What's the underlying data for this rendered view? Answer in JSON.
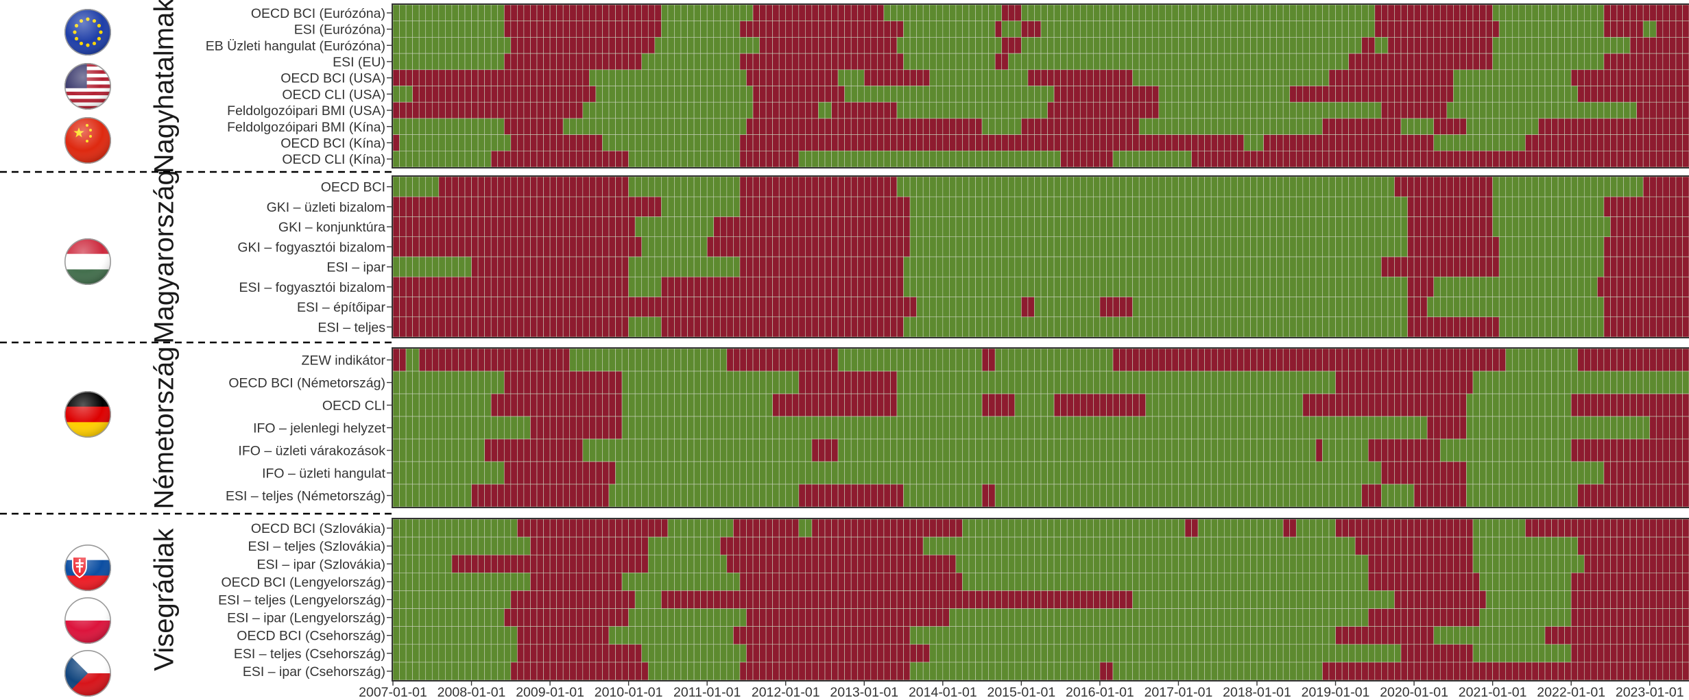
{
  "colors": {
    "red": "#8e1b2f",
    "green": "#5d8a2f",
    "cell_border": "#c9d2bc",
    "divider": "#000000"
  },
  "chart_data": {
    "type": "heatmap",
    "x_start": "2007-01",
    "x_end": "2023-06",
    "step": "month",
    "x_ticks": [
      "2007-01-01",
      "2008-01-01",
      "2009-01-01",
      "2010-01-01",
      "2011-01-01",
      "2012-01-01",
      "2013-01-01",
      "2014-01-01",
      "2015-01-01",
      "2016-01-01",
      "2017-01-01",
      "2018-01-01",
      "2019-01-01",
      "2020-01-01",
      "2021-01-01",
      "2022-01-01",
      "2023-01-01"
    ],
    "encoding": {
      "red": "negative signal",
      "green": "positive signal"
    },
    "groups": [
      {
        "title": "Nagyhatalmak",
        "flags": [
          "eu-flag-icon",
          "usa-flag-icon",
          "china-flag-icon"
        ],
        "rows": [
          {
            "label": "OECD BCI (Eurózóna)",
            "red_periods": [
              [
                "2008-06",
                "2010-05"
              ],
              [
                "2011-08",
                "2013-03"
              ],
              [
                "2014-10",
                "2014-12"
              ],
              [
                "2019-07",
                "2020-12"
              ],
              [
                "2022-06",
                "2023-06"
              ]
            ]
          },
          {
            "label": "ESI (Eurózóna)",
            "red_periods": [
              [
                "2008-06",
                "2010-05"
              ],
              [
                "2011-06",
                "2013-06"
              ],
              [
                "2014-09",
                "2014-09"
              ],
              [
                "2015-01",
                "2015-03"
              ],
              [
                "2019-07",
                "2021-01"
              ],
              [
                "2022-06",
                "2022-11"
              ],
              [
                "2023-02",
                "2023-06"
              ]
            ]
          },
          {
            "label": "EB Üzleti hangulat (Eurózóna)",
            "red_periods": [
              [
                "2008-07",
                "2010-04"
              ],
              [
                "2011-09",
                "2013-05"
              ],
              [
                "2014-10",
                "2014-12"
              ],
              [
                "2019-05",
                "2019-06"
              ],
              [
                "2019-09",
                "2020-12"
              ],
              [
                "2022-10",
                "2023-06"
              ]
            ]
          },
          {
            "label": "ESI (EU)",
            "red_periods": [
              [
                "2008-06",
                "2010-02"
              ],
              [
                "2011-06",
                "2013-06"
              ],
              [
                "2014-09",
                "2014-10"
              ],
              [
                "2019-03",
                "2020-12"
              ],
              [
                "2022-06",
                "2023-06"
              ]
            ]
          },
          {
            "label": "OECD BCI (USA)",
            "red_periods": [
              [
                "2007-01",
                "2009-06"
              ],
              [
                "2011-07",
                "2012-08"
              ],
              [
                "2013-01",
                "2013-10"
              ],
              [
                "2015-02",
                "2016-05"
              ],
              [
                "2018-12",
                "2020-06"
              ],
              [
                "2022-01",
                "2023-06"
              ]
            ]
          },
          {
            "label": "OECD CLI (USA)",
            "red_periods": [
              [
                "2007-04",
                "2009-07"
              ],
              [
                "2011-08",
                "2012-09"
              ],
              [
                "2015-06",
                "2016-09"
              ],
              [
                "2018-06",
                "2020-06"
              ],
              [
                "2022-02",
                "2023-06"
              ]
            ]
          },
          {
            "label": "Feldolgozóipari BMI (USA)",
            "red_periods": [
              [
                "2007-01",
                "2009-05"
              ],
              [
                "2011-08",
                "2012-05"
              ],
              [
                "2012-08",
                "2013-05"
              ],
              [
                "2015-05",
                "2016-09"
              ],
              [
                "2019-08",
                "2020-05"
              ],
              [
                "2022-11",
                "2023-06"
              ]
            ]
          },
          {
            "label": "Feldolgozóipari BMI (Kína)",
            "red_periods": [
              [
                "2008-06",
                "2009-02"
              ],
              [
                "2011-07",
                "2014-06"
              ],
              [
                "2015-01",
                "2016-06"
              ],
              [
                "2018-11",
                "2019-10"
              ],
              [
                "2020-04",
                "2020-08"
              ],
              [
                "2021-08",
                "2023-06"
              ]
            ]
          },
          {
            "label": "OECD BCI (Kína)",
            "red_periods": [
              [
                "2007-01",
                "2007-01"
              ],
              [
                "2008-07",
                "2009-08"
              ],
              [
                "2011-06",
                "2017-10"
              ],
              [
                "2018-02",
                "2020-03"
              ],
              [
                "2021-06",
                "2023-06"
              ]
            ]
          },
          {
            "label": "OECD CLI (Kína)",
            "red_periods": [
              [
                "2008-04",
                "2009-12"
              ],
              [
                "2011-06",
                "2012-02"
              ],
              [
                "2015-07",
                "2016-02"
              ],
              [
                "2017-03",
                "2023-06"
              ]
            ]
          }
        ]
      },
      {
        "title": "Magyarország",
        "flags": [
          "hungary-flag-icon"
        ],
        "rows": [
          {
            "label": "OECD BCI",
            "red_periods": [
              [
                "2007-08",
                "2009-12"
              ],
              [
                "2011-06",
                "2013-05"
              ],
              [
                "2019-10",
                "2020-12"
              ],
              [
                "2022-12",
                "2023-06"
              ]
            ]
          },
          {
            "label": "GKI – üzleti bizalom",
            "red_periods": [
              [
                "2007-01",
                "2010-05"
              ],
              [
                "2011-06",
                "2013-07"
              ],
              [
                "2019-12",
                "2020-12"
              ],
              [
                "2022-06",
                "2023-06"
              ]
            ]
          },
          {
            "label": "GKI – konjunktúra",
            "red_periods": [
              [
                "2007-01",
                "2010-01"
              ],
              [
                "2011-02",
                "2013-07"
              ],
              [
                "2019-12",
                "2020-12"
              ],
              [
                "2022-07",
                "2023-06"
              ]
            ]
          },
          {
            "label": "GKI – fogyasztói bizalom",
            "red_periods": [
              [
                "2007-01",
                "2010-02"
              ],
              [
                "2011-01",
                "2013-07"
              ],
              [
                "2019-12",
                "2021-01"
              ],
              [
                "2022-06",
                "2023-06"
              ]
            ]
          },
          {
            "label": "ESI – ipar",
            "red_periods": [
              [
                "2008-01",
                "2009-12"
              ],
              [
                "2011-06",
                "2013-06"
              ],
              [
                "2019-08",
                "2021-01"
              ],
              [
                "2022-06",
                "2023-06"
              ]
            ]
          },
          {
            "label": "ESI – fogyasztói bizalom",
            "red_periods": [
              [
                "2007-01",
                "2009-12"
              ],
              [
                "2010-06",
                "2013-06"
              ],
              [
                "2019-12",
                "2020-03"
              ],
              [
                "2022-05",
                "2023-06"
              ]
            ]
          },
          {
            "label": "ESI – építőipar",
            "red_periods": [
              [
                "2007-01",
                "2013-08"
              ],
              [
                "2015-01",
                "2015-02"
              ],
              [
                "2016-01",
                "2016-05"
              ],
              [
                "2019-12",
                "2020-02"
              ],
              [
                "2022-06",
                "2023-06"
              ]
            ]
          },
          {
            "label": "ESI – teljes",
            "red_periods": [
              [
                "2007-01",
                "2009-12"
              ],
              [
                "2010-06",
                "2013-06"
              ],
              [
                "2019-12",
                "2021-01"
              ],
              [
                "2022-06",
                "2023-06"
              ]
            ]
          }
        ]
      },
      {
        "title": "Németország",
        "flags": [
          "germany-flag-icon"
        ],
        "rows": [
          {
            "label": "ZEW indikátor",
            "red_periods": [
              [
                "2007-01",
                "2007-02"
              ],
              [
                "2007-05",
                "2009-03"
              ],
              [
                "2011-04",
                "2012-08"
              ],
              [
                "2014-07",
                "2014-08"
              ],
              [
                "2016-03",
                "2021-02"
              ],
              [
                "2022-02",
                "2023-06"
              ]
            ]
          },
          {
            "label": "OECD BCI (Németország)",
            "red_periods": [
              [
                "2008-06",
                "2009-11"
              ],
              [
                "2012-03",
                "2013-05"
              ],
              [
                "2019-01",
                "2020-09"
              ]
            ]
          },
          {
            "label": "OECD CLI",
            "red_periods": [
              [
                "2008-04",
                "2009-11"
              ],
              [
                "2011-11",
                "2013-05"
              ],
              [
                "2014-07",
                "2014-11"
              ],
              [
                "2015-06",
                "2016-07"
              ],
              [
                "2018-08",
                "2020-08"
              ],
              [
                "2022-01",
                "2023-06"
              ]
            ]
          },
          {
            "label": "IFO – jelenlegi helyzet",
            "red_periods": [
              [
                "2008-10",
                "2009-11"
              ],
              [
                "2020-03",
                "2020-08"
              ],
              [
                "2023-01",
                "2023-06"
              ]
            ]
          },
          {
            "label": "IFO – üzleti várakozások",
            "red_periods": [
              [
                "2008-03",
                "2009-05"
              ],
              [
                "2012-05",
                "2012-08"
              ],
              [
                "2018-10",
                "2018-10"
              ],
              [
                "2019-06",
                "2020-04"
              ],
              [
                "2022-01",
                "2023-06"
              ]
            ]
          },
          {
            "label": "IFO – üzleti hangulat",
            "red_periods": [
              [
                "2008-06",
                "2009-10"
              ],
              [
                "2019-08",
                "2020-08"
              ],
              [
                "2022-06",
                "2023-06"
              ]
            ]
          },
          {
            "label": "ESI – teljes (Németország)",
            "red_periods": [
              [
                "2008-01",
                "2009-09"
              ],
              [
                "2012-03",
                "2013-06"
              ],
              [
                "2014-07",
                "2014-08"
              ],
              [
                "2019-05",
                "2019-07"
              ],
              [
                "2020-01",
                "2020-08"
              ],
              [
                "2022-02",
                "2023-06"
              ]
            ]
          }
        ]
      },
      {
        "title": "Visegrádiak",
        "flags": [
          "slovakia-flag-icon",
          "poland-flag-icon",
          "czechia-flag-icon"
        ],
        "rows": [
          {
            "label": "OECD BCI (Szlovákia)",
            "red_periods": [
              [
                "2008-08",
                "2010-06"
              ],
              [
                "2011-05",
                "2012-02"
              ],
              [
                "2012-05",
                "2014-03"
              ],
              [
                "2017-02",
                "2017-03"
              ],
              [
                "2018-05",
                "2018-06"
              ],
              [
                "2019-01",
                "2020-09"
              ],
              [
                "2021-06",
                "2023-06"
              ]
            ]
          },
          {
            "label": "ESI – teljes (Szlovákia)",
            "red_periods": [
              [
                "2008-10",
                "2010-03"
              ],
              [
                "2011-03",
                "2013-09"
              ],
              [
                "2019-04",
                "2020-09"
              ],
              [
                "2022-02",
                "2023-06"
              ]
            ]
          },
          {
            "label": "ESI – ipar (Szlovákia)",
            "red_periods": [
              [
                "2007-10",
                "2010-03"
              ],
              [
                "2011-04",
                "2014-02"
              ],
              [
                "2019-06",
                "2020-09"
              ],
              [
                "2022-03",
                "2023-06"
              ]
            ]
          },
          {
            "label": "OECD BCI (Lengyelország)",
            "red_periods": [
              [
                "2008-10",
                "2009-11"
              ],
              [
                "2011-06",
                "2014-03"
              ],
              [
                "2019-06",
                "2020-10"
              ],
              [
                "2022-01",
                "2023-06"
              ]
            ]
          },
          {
            "label": "ESI – teljes (Lengyelország)",
            "red_periods": [
              [
                "2008-07",
                "2010-01"
              ],
              [
                "2010-06",
                "2016-05"
              ],
              [
                "2019-10",
                "2020-11"
              ],
              [
                "2022-01",
                "2023-06"
              ]
            ]
          },
          {
            "label": "ESI – ipar (Lengyelország)",
            "red_periods": [
              [
                "2008-06",
                "2009-12"
              ],
              [
                "2011-07",
                "2014-01"
              ],
              [
                "2019-06",
                "2020-10"
              ],
              [
                "2022-01",
                "2023-06"
              ]
            ]
          },
          {
            "label": "OECD BCI (Csehország)",
            "red_periods": [
              [
                "2008-08",
                "2009-09"
              ],
              [
                "2011-05",
                "2013-07"
              ],
              [
                "2019-01",
                "2020-03"
              ],
              [
                "2021-09",
                "2023-06"
              ]
            ]
          },
          {
            "label": "ESI – teljes (Csehország)",
            "red_periods": [
              [
                "2008-08",
                "2010-02"
              ],
              [
                "2011-07",
                "2013-10"
              ],
              [
                "2019-11",
                "2020-09"
              ],
              [
                "2022-01",
                "2023-06"
              ]
            ]
          },
          {
            "label": "ESI – ipar (Csehország)",
            "red_periods": [
              [
                "2008-07",
                "2010-03"
              ],
              [
                "2011-06",
                "2013-07"
              ],
              [
                "2016-01",
                "2016-02"
              ],
              [
                "2018-11",
                "2023-06"
              ]
            ]
          }
        ]
      }
    ]
  }
}
